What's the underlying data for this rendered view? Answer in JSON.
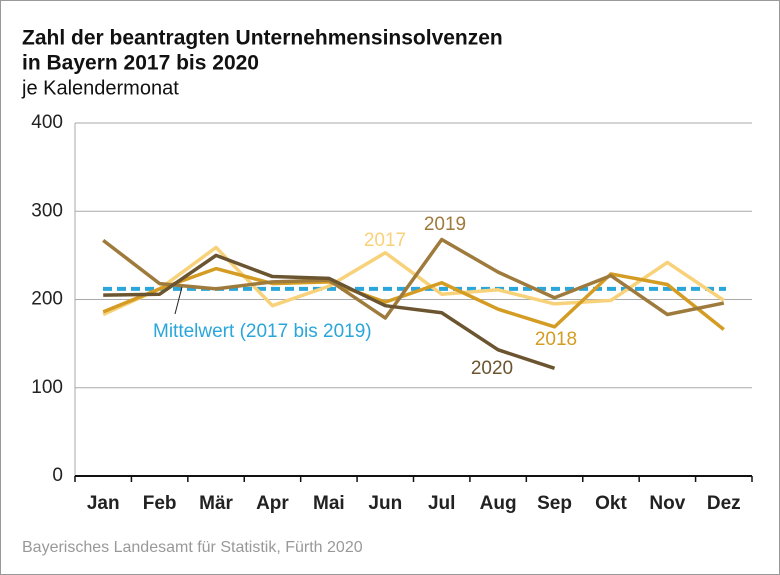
{
  "chart_data": {
    "type": "line",
    "title": [
      "Zahl der beantragten Unternehmensinsolvenzen",
      "in Bayern 2017 bis 2020"
    ],
    "subtitle": "je Kalendermonat",
    "source": "Bayerisches Landesamt für Statistik, Fürth 2020",
    "categories": [
      "Jan",
      "Feb",
      "Mär",
      "Apr",
      "Mai",
      "Jun",
      "Jul",
      "Aug",
      "Sep",
      "Okt",
      "Nov",
      "Dez"
    ],
    "series": [
      {
        "name": "2017",
        "color": "#f8d27a",
        "values": [
          183,
          212,
          259,
          193,
          215,
          253,
          206,
          211,
          195,
          199,
          242,
          199
        ]
      },
      {
        "name": "2018",
        "color": "#d49c22",
        "values": [
          186,
          212,
          235,
          218,
          220,
          197,
          219,
          189,
          169,
          229,
          217,
          166
        ]
      },
      {
        "name": "2019",
        "color": "#9e7b3c",
        "values": [
          267,
          218,
          212,
          220,
          222,
          179,
          268,
          231,
          202,
          227,
          183,
          196
        ]
      },
      {
        "name": "2020",
        "color": "#6b5530",
        "values": [
          205,
          206,
          250,
          226,
          224,
          193,
          185,
          143,
          122,
          null,
          null,
          null
        ]
      }
    ],
    "mean": {
      "label": "Mittelwert (2017 bis 2019)",
      "value": 212,
      "color": "#2aa6da"
    },
    "ylim": [
      0,
      400
    ],
    "yticks": [
      0,
      100,
      200,
      300,
      400
    ],
    "grid": true
  }
}
